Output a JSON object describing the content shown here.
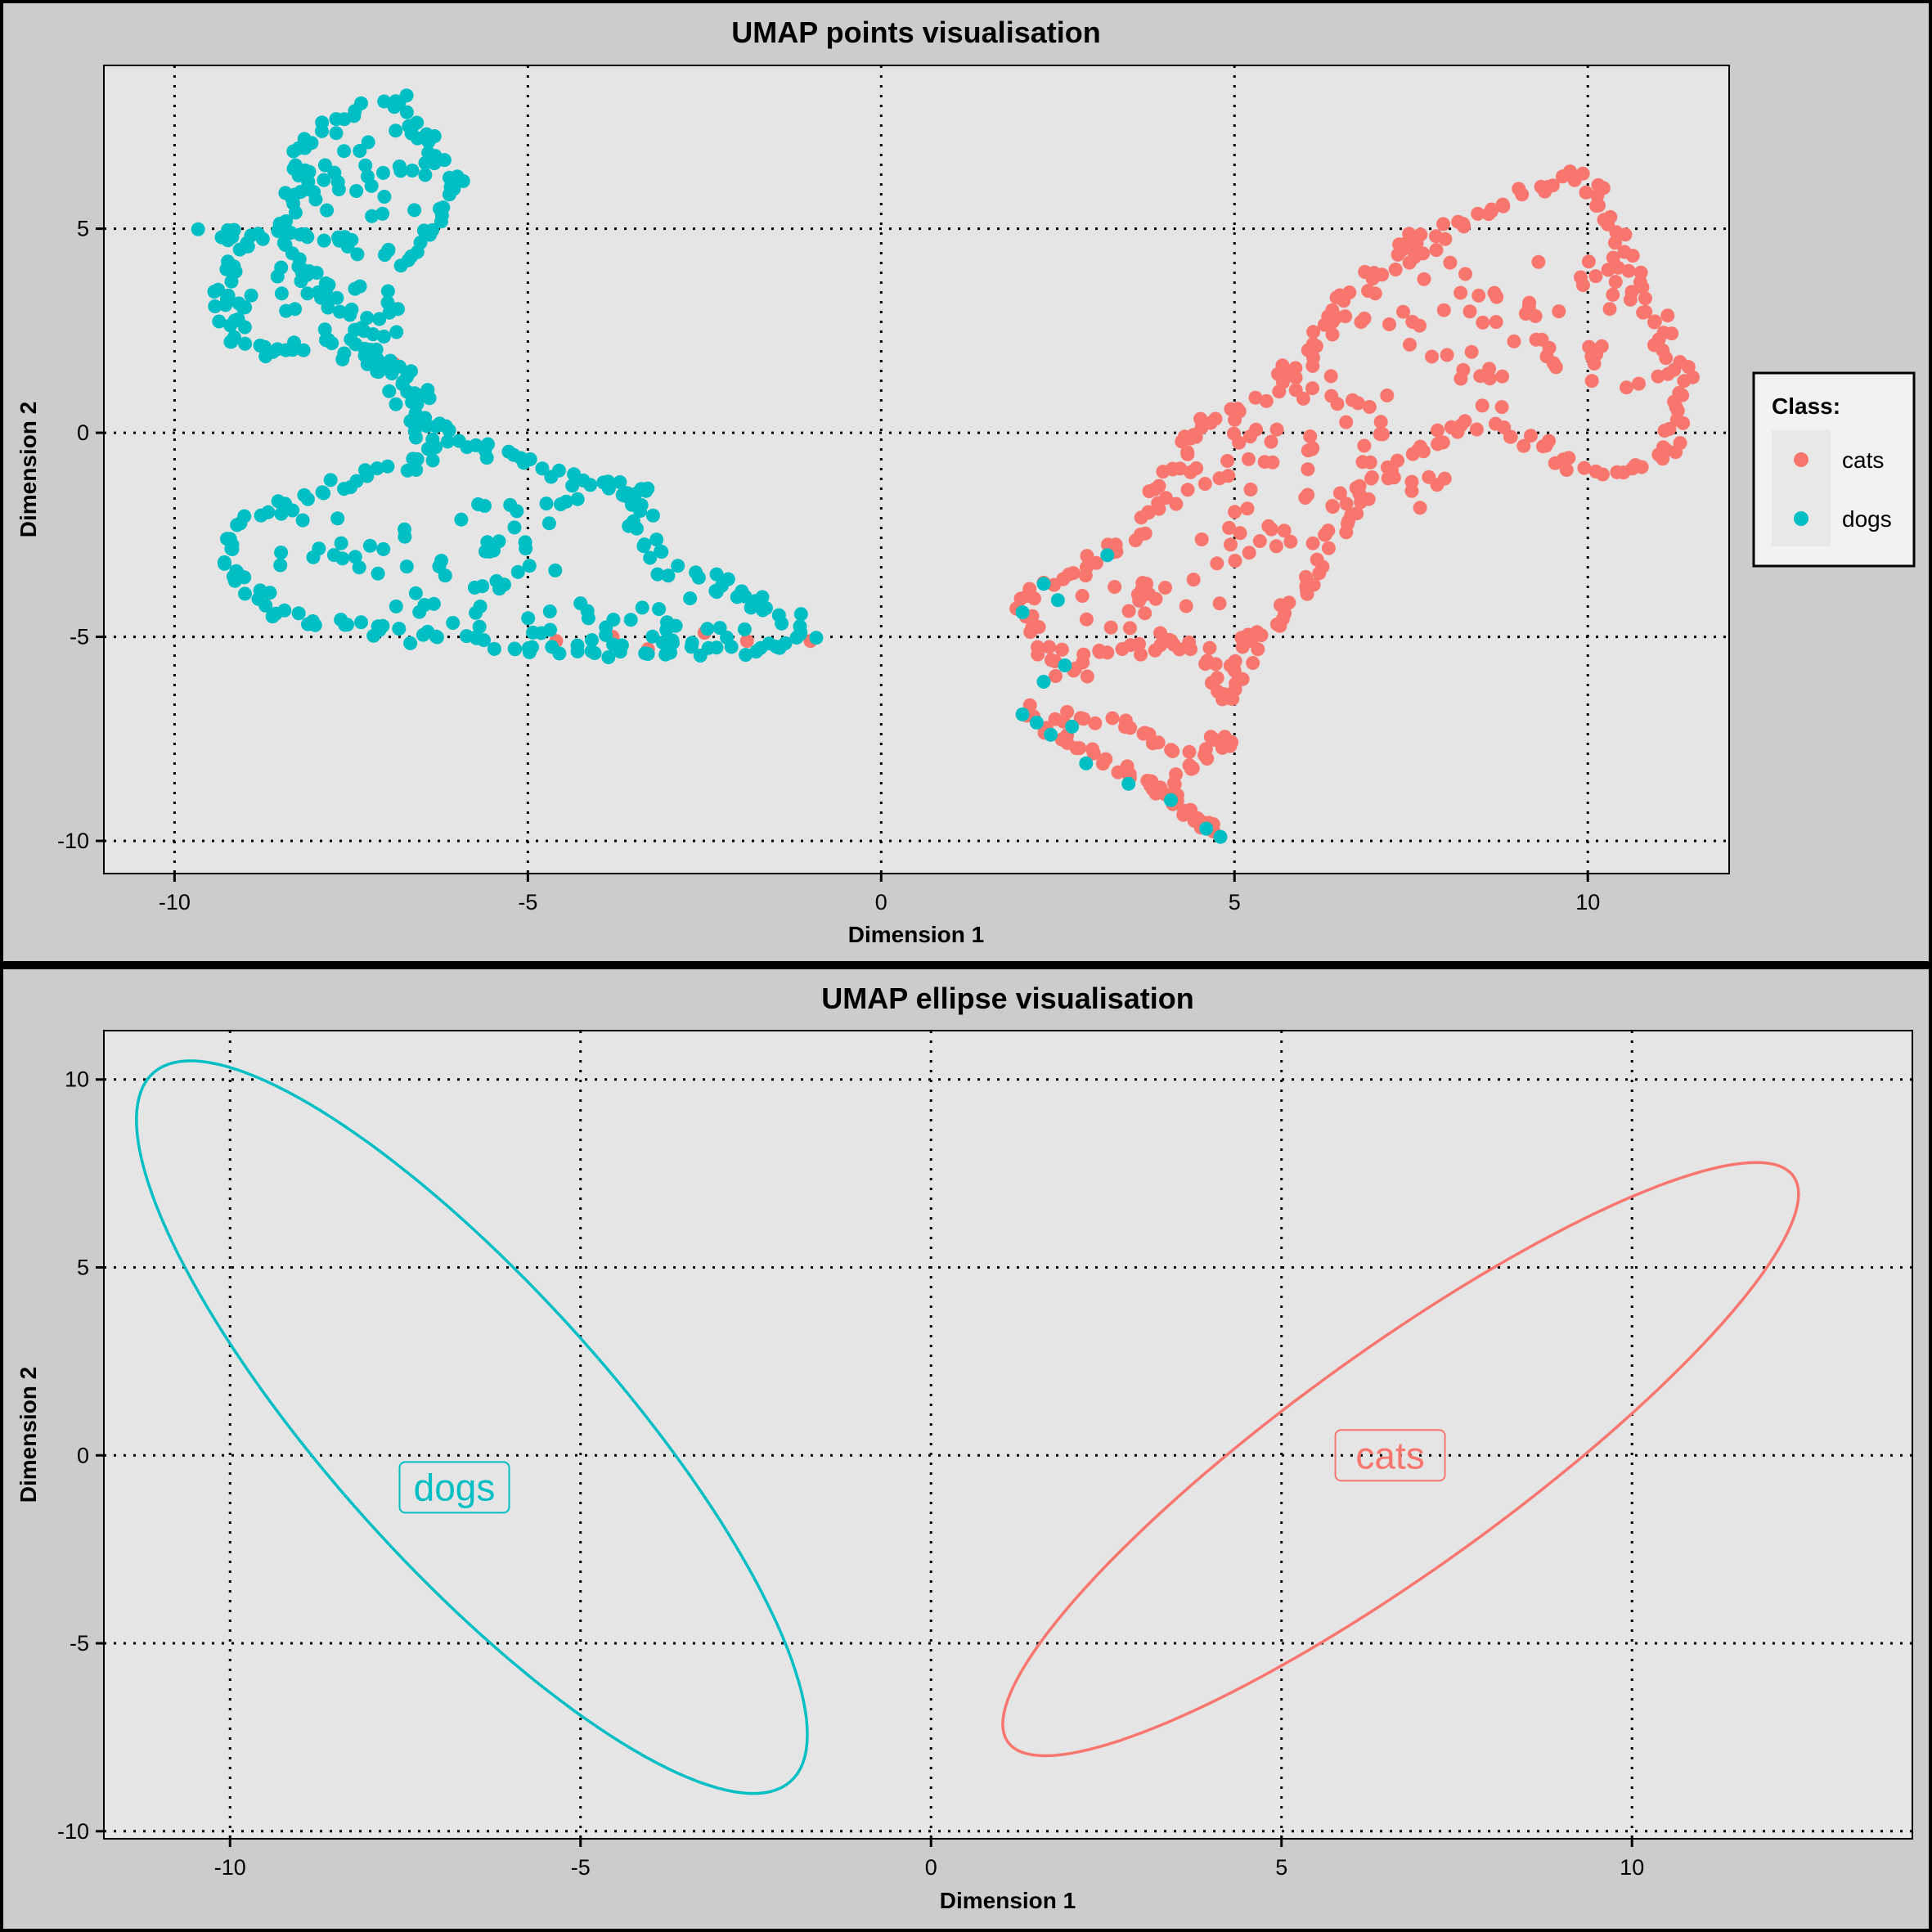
{
  "colors": {
    "cats": "#F8766D",
    "dogs": "#00BFC4",
    "panel": "#E5E5E5",
    "background": "#CCCCCC"
  },
  "legend": {
    "title": "Class:",
    "items": [
      {
        "label": "cats",
        "color": "#F8766D"
      },
      {
        "label": "dogs",
        "color": "#00BFC4"
      }
    ]
  },
  "chart_data": [
    {
      "type": "scatter",
      "title": "UMAP points visualisation",
      "xlabel": "Dimension 1",
      "ylabel": "Dimension 2",
      "xlim": [
        -11,
        12
      ],
      "ylim": [
        -10.8,
        9
      ],
      "xticks": [
        -10,
        -5,
        0,
        5,
        10
      ],
      "yticks": [
        -10,
        -5,
        0,
        5
      ],
      "grid": true,
      "legend_position": "right",
      "series": [
        {
          "name": "dogs",
          "color": "#00BFC4",
          "outline": [
            [
              -9.5,
              4.9
            ],
            [
              -9.1,
              4.7
            ],
            [
              -9.3,
              3.5
            ],
            [
              -9.2,
              2.5
            ],
            [
              -8.6,
              1.8
            ],
            [
              -7.8,
              2.3
            ],
            [
              -7.3,
              1.8
            ],
            [
              -6.6,
              1.2
            ],
            [
              -6.4,
              0.5
            ],
            [
              -6.0,
              -0.2
            ],
            [
              -5.2,
              -0.6
            ],
            [
              -4.6,
              -1.1
            ],
            [
              -3.8,
              -1.3
            ],
            [
              -3.2,
              -1.6
            ],
            [
              -3.4,
              -2.2
            ],
            [
              -3.1,
              -3.3
            ],
            [
              -2.5,
              -3.6
            ],
            [
              -1.6,
              -4.2
            ],
            [
              -1.0,
              -5.0
            ],
            [
              -2.0,
              -5.3
            ],
            [
              -3.3,
              -5.3
            ],
            [
              -4.7,
              -5.4
            ],
            [
              -6.0,
              -5.1
            ],
            [
              -7.4,
              -4.8
            ],
            [
              -8.5,
              -4.4
            ],
            [
              -9.2,
              -3.5
            ],
            [
              -9.3,
              -2.8
            ],
            [
              -9.0,
              -2.2
            ],
            [
              -8.2,
              -1.6
            ],
            [
              -7.2,
              -1.0
            ],
            [
              -6.4,
              -0.6
            ],
            [
              -6.5,
              0.2
            ],
            [
              -6.9,
              1.2
            ],
            [
              -7.5,
              2.8
            ],
            [
              -8.2,
              4.1
            ],
            [
              -8.4,
              5.5
            ],
            [
              -8.0,
              7.2
            ],
            [
              -7.4,
              7.9
            ],
            [
              -6.8,
              8.1
            ],
            [
              -6.5,
              7.3
            ],
            [
              -6.0,
              6.2
            ],
            [
              -6.3,
              5.2
            ],
            [
              -6.8,
              4.2
            ],
            [
              -7.7,
              4.8
            ],
            [
              -8.8,
              4.8
            ]
          ],
          "extra": [
            [
              -4.1,
              -1.9
            ],
            [
              -5.0,
              -3.2
            ],
            [
              -6.8,
              -3.0
            ],
            [
              -7.9,
              -2.6
            ],
            [
              -5.5,
              -2.4
            ],
            [
              -3.6,
              -4.5
            ],
            [
              -2.4,
              -4.5
            ],
            [
              -4.5,
              -4.7
            ],
            [
              -6.3,
              -4.2
            ],
            [
              -7.2,
              5.8
            ],
            [
              -6.9,
              3.0
            ],
            [
              -7.9,
              3.4
            ],
            [
              -6.7,
              6.8
            ],
            [
              -7.7,
              6.3
            ],
            [
              -8.5,
              3.0
            ]
          ],
          "stray": [
            [
              2.0,
              -4.4
            ],
            [
              2.3,
              -3.7
            ],
            [
              2.5,
              -4.1
            ],
            [
              3.2,
              -3.0
            ],
            [
              2.6,
              -5.7
            ],
            [
              2.3,
              -6.1
            ],
            [
              2.0,
              -6.9
            ],
            [
              2.4,
              -7.4
            ],
            [
              2.9,
              -8.1
            ],
            [
              3.5,
              -8.6
            ],
            [
              4.1,
              -9.0
            ],
            [
              4.6,
              -9.7
            ],
            [
              4.8,
              -9.9
            ],
            [
              2.7,
              -7.2
            ],
            [
              2.2,
              -7.1
            ]
          ]
        },
        {
          "name": "cats",
          "color": "#F8766D",
          "outline": [
            [
              4.3,
              -0.1
            ],
            [
              5.4,
              0.9
            ],
            [
              6.1,
              2.0
            ],
            [
              6.5,
              3.0
            ],
            [
              7.2,
              4.1
            ],
            [
              7.9,
              4.9
            ],
            [
              8.9,
              5.7
            ],
            [
              9.9,
              6.3
            ],
            [
              10.2,
              5.7
            ],
            [
              10.6,
              3.8
            ],
            [
              11.0,
              2.7
            ],
            [
              11.4,
              1.2
            ],
            [
              11.2,
              -0.4
            ],
            [
              10.6,
              -0.9
            ],
            [
              9.8,
              -0.9
            ],
            [
              9.3,
              -0.2
            ],
            [
              8.3,
              0.2
            ],
            [
              7.6,
              -0.4
            ],
            [
              6.8,
              -1.5
            ],
            [
              6.2,
              -3.0
            ],
            [
              6.0,
              -4.1
            ],
            [
              5.3,
              -4.8
            ],
            [
              5.1,
              -5.5
            ],
            [
              5.0,
              -6.5
            ],
            [
              4.6,
              -5.5
            ],
            [
              4.1,
              -5.0
            ],
            [
              3.8,
              -5.3
            ],
            [
              3.2,
              -5.2
            ],
            [
              2.8,
              -5.9
            ],
            [
              2.6,
              -5.8
            ],
            [
              2.1,
              -5.0
            ],
            [
              2.0,
              -4.2
            ],
            [
              2.4,
              -3.7
            ],
            [
              3.2,
              -3.0
            ],
            [
              3.8,
              -2.1
            ],
            [
              4.3,
              -0.1
            ]
          ],
          "extra": [
            [
              7.0,
              2.8
            ],
            [
              8.5,
              3.0
            ],
            [
              9.7,
              3.5
            ],
            [
              8.2,
              1.3
            ],
            [
              6.5,
              0.8
            ],
            [
              5.6,
              -0.6
            ],
            [
              7.3,
              -1.2
            ],
            [
              9.0,
              2.2
            ],
            [
              10.3,
              1.8
            ],
            [
              5.0,
              -2.5
            ],
            [
              4.2,
              -3.8
            ],
            [
              3.1,
              -4.2
            ],
            [
              6.4,
              -0.2
            ],
            [
              8.0,
              4.2
            ],
            [
              4.8,
              -1.2
            ],
            [
              5.8,
              -2.0
            ]
          ],
          "loop": [
            [
              2.0,
              -6.8
            ],
            [
              2.8,
              -7.0
            ],
            [
              3.6,
              -7.2
            ],
            [
              4.1,
              -7.8
            ],
            [
              4.6,
              -7.6
            ],
            [
              5.0,
              -7.5
            ],
            [
              4.2,
              -8.5
            ],
            [
              3.8,
              -8.6
            ],
            [
              4.3,
              -9.2
            ],
            [
              4.8,
              -9.8
            ],
            [
              4.0,
              -8.9
            ],
            [
              3.3,
              -8.2
            ],
            [
              2.6,
              -7.5
            ],
            [
              2.2,
              -7.1
            ]
          ],
          "stray": [
            [
              -1.0,
              -5.1
            ],
            [
              -2.5,
              -4.9
            ],
            [
              -3.3,
              -5.3
            ],
            [
              -1.9,
              -5.1
            ],
            [
              -4.6,
              -5.1
            ],
            [
              -6.9,
              1.7
            ],
            [
              -3.8,
              -5.0
            ]
          ]
        }
      ]
    },
    {
      "type": "ellipse",
      "title": "UMAP ellipse visualisation",
      "xlabel": "Dimension 1",
      "ylabel": "Dimension 2",
      "xlim": [
        -11.8,
        14
      ],
      "ylim": [
        -10.2,
        11.3
      ],
      "xticks": [
        -10,
        -5,
        0,
        5,
        10
      ],
      "yticks": [
        -10,
        -5,
        0,
        5,
        10
      ],
      "grid": true,
      "series": [
        {
          "name": "dogs",
          "label": "dogs",
          "color": "#00BFC4",
          "center": [
            -6.55,
            0.75
          ],
          "label_pos": [
            -6.8,
            -0.85
          ],
          "semi_major": [
            4.25,
            -9.7
          ],
          "semi_minor": [
            -2.2,
            -0.95
          ]
        },
        {
          "name": "cats",
          "label": "cats",
          "color": "#F8766D",
          "center": [
            6.7,
            -0.1
          ],
          "label_pos": [
            6.55,
            0.0
          ],
          "semi_major": [
            5.4,
            7.8
          ],
          "semi_minor": [
            1.75,
            -1.2
          ]
        }
      ]
    }
  ]
}
